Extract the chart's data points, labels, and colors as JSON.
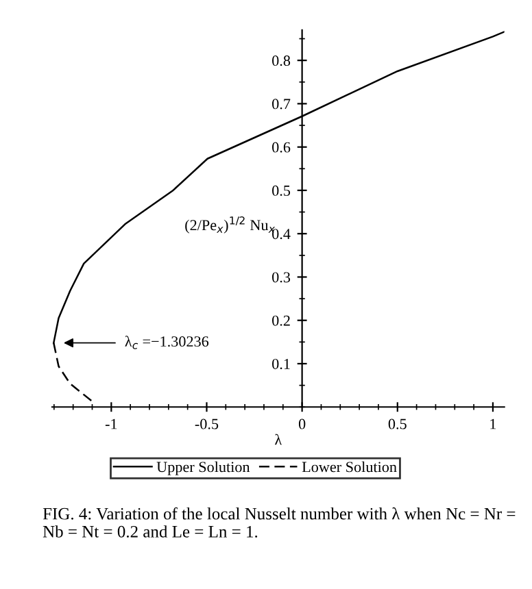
{
  "chart_data": {
    "type": "line",
    "xlabel": "λ",
    "ylabel": "(2/Pe$_{x}$)$^{1/2}$ Nu$_{x}$",
    "series": [
      {
        "name": "Upper Solution",
        "color": "#000000",
        "line_style": "solid",
        "x": [
          -1.302,
          -1.276,
          -1.216,
          -1.144,
          -0.928,
          -0.676,
          -0.496,
          0,
          0.5,
          1.0,
          1.06
        ],
        "values": [
          0.148,
          0.205,
          0.268,
          0.331,
          0.422,
          0.5,
          0.573,
          0.671,
          0.775,
          0.855,
          0.866
        ]
      },
      {
        "name": "Lower Solution",
        "color": "#000000",
        "line_style": "dashed",
        "x": [
          -1.302,
          -1.276,
          -1.216,
          -1.1
        ],
        "values": [
          0.148,
          0.094,
          0.054,
          0.013
        ]
      }
    ],
    "xlim": [
      -1.31,
      1.06
    ],
    "ylim": [
      0,
      0.87
    ],
    "xticks": [
      -1,
      -0.5,
      0,
      0.5,
      1
    ],
    "yticks": [
      0.1,
      0.2,
      0.3,
      0.4,
      0.5,
      0.6,
      0.7,
      0.8
    ],
    "legend": "bottom",
    "grid": false,
    "marker": "none",
    "annotations": [
      "λ$_{c}$ =−1.30236",
      "FIG. 4: Variation of the local Nusselt number with λ when Nc = Nr = Nb = Nt = 0.2 and Le = Ln = 1."
    ]
  }
}
